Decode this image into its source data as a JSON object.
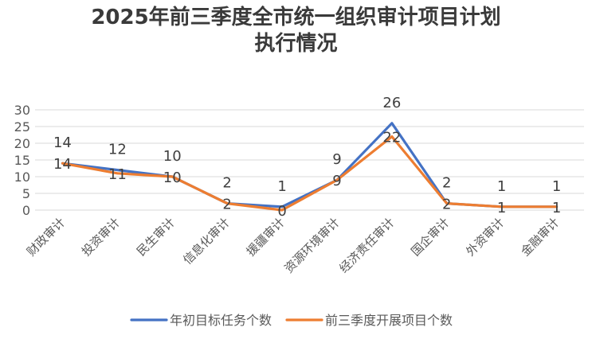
{
  "chart_data": {
    "type": "line",
    "title": [
      "2025年前三季度全市统一组织审计项目计划",
      "执行情况"
    ],
    "categories": [
      "财政审计",
      "投资审计",
      "民生审计",
      "信息化审计",
      "援疆审计",
      "资源环境审计",
      "经济责任审计",
      "国企审计",
      "外资审计",
      "金融审计"
    ],
    "series": [
      {
        "name": "年初目标任务个数",
        "values": [
          14,
          12,
          10,
          2,
          1,
          9,
          26,
          2,
          1,
          1
        ],
        "color": "#4472c4"
      },
      {
        "name": "前三季度开展项目个数",
        "values": [
          14,
          11,
          10,
          2,
          0,
          9,
          22,
          2,
          1,
          1
        ],
        "color": "#ed7d31"
      }
    ],
    "ylim": [
      0,
      30
    ],
    "yticks": [
      0,
      5,
      10,
      15,
      20,
      25,
      30
    ],
    "grid": true,
    "legend": "bottom"
  }
}
